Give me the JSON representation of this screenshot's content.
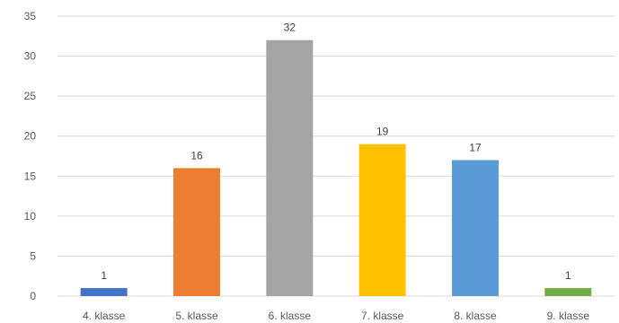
{
  "chart_data": {
    "type": "bar",
    "categories": [
      "4. klasse",
      "5. klasse",
      "6. klasse",
      "7. klasse",
      "8. klasse",
      "9. klasse"
    ],
    "values": [
      1,
      16,
      32,
      19,
      17,
      1
    ],
    "data_labels": [
      "1",
      "16",
      "32",
      "19",
      "17",
      "1"
    ],
    "colors": [
      "#4472c4",
      "#ed7d31",
      "#a5a5a5",
      "#ffc000",
      "#5b9bd5",
      "#70ad47"
    ],
    "ylim": [
      0,
      35
    ],
    "yticks": [
      0,
      5,
      10,
      15,
      20,
      25,
      30,
      35
    ],
    "grid": true,
    "title": "",
    "xlabel": "",
    "ylabel": ""
  }
}
